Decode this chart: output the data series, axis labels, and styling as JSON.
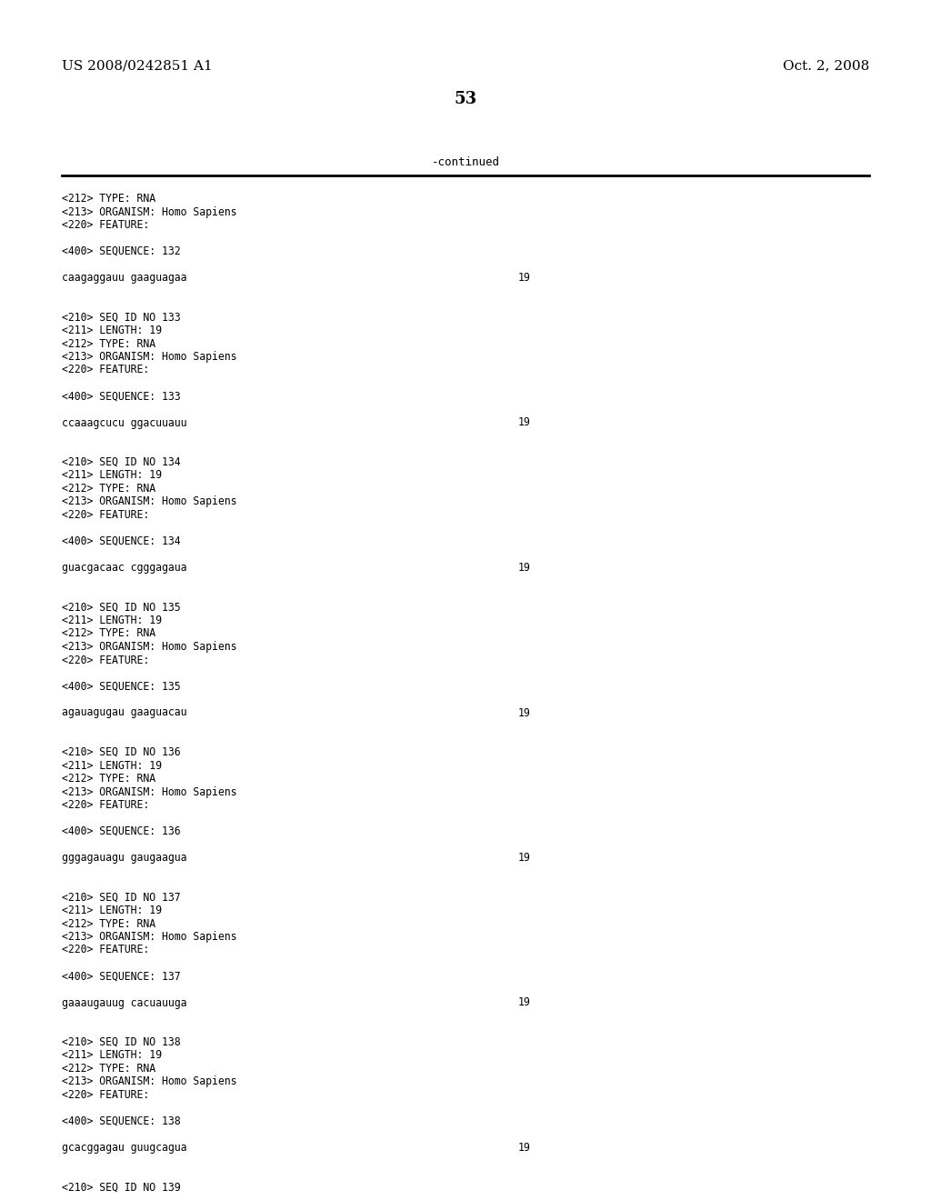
{
  "patent_number": "US 2008/0242851 A1",
  "date": "Oct. 2, 2008",
  "page_number": "53",
  "continued_label": "-continued",
  "background_color": "#ffffff",
  "text_color": "#000000",
  "content_lines": [
    [
      "<212> TYPE: RNA",
      null
    ],
    [
      "<213> ORGANISM: Homo Sapiens",
      null
    ],
    [
      "<220> FEATURE:",
      null
    ],
    [
      "",
      null
    ],
    [
      "<400> SEQUENCE: 132",
      null
    ],
    [
      "",
      null
    ],
    [
      "caagaggauu gaaguagaa",
      "19"
    ],
    [
      "",
      null
    ],
    [
      "",
      null
    ],
    [
      "<210> SEQ ID NO 133",
      null
    ],
    [
      "<211> LENGTH: 19",
      null
    ],
    [
      "<212> TYPE: RNA",
      null
    ],
    [
      "<213> ORGANISM: Homo Sapiens",
      null
    ],
    [
      "<220> FEATURE:",
      null
    ],
    [
      "",
      null
    ],
    [
      "<400> SEQUENCE: 133",
      null
    ],
    [
      "",
      null
    ],
    [
      "ccaaagcucu ggacuuauu",
      "19"
    ],
    [
      "",
      null
    ],
    [
      "",
      null
    ],
    [
      "<210> SEQ ID NO 134",
      null
    ],
    [
      "<211> LENGTH: 19",
      null
    ],
    [
      "<212> TYPE: RNA",
      null
    ],
    [
      "<213> ORGANISM: Homo Sapiens",
      null
    ],
    [
      "<220> FEATURE:",
      null
    ],
    [
      "",
      null
    ],
    [
      "<400> SEQUENCE: 134",
      null
    ],
    [
      "",
      null
    ],
    [
      "guacgacaac cgggagaua",
      "19"
    ],
    [
      "",
      null
    ],
    [
      "",
      null
    ],
    [
      "<210> SEQ ID NO 135",
      null
    ],
    [
      "<211> LENGTH: 19",
      null
    ],
    [
      "<212> TYPE: RNA",
      null
    ],
    [
      "<213> ORGANISM: Homo Sapiens",
      null
    ],
    [
      "<220> FEATURE:",
      null
    ],
    [
      "",
      null
    ],
    [
      "<400> SEQUENCE: 135",
      null
    ],
    [
      "",
      null
    ],
    [
      "agauagugau gaaguacau",
      "19"
    ],
    [
      "",
      null
    ],
    [
      "",
      null
    ],
    [
      "<210> SEQ ID NO 136",
      null
    ],
    [
      "<211> LENGTH: 19",
      null
    ],
    [
      "<212> TYPE: RNA",
      null
    ],
    [
      "<213> ORGANISM: Homo Sapiens",
      null
    ],
    [
      "<220> FEATURE:",
      null
    ],
    [
      "",
      null
    ],
    [
      "<400> SEQUENCE: 136",
      null
    ],
    [
      "",
      null
    ],
    [
      "gggagauagu gaugaagua",
      "19"
    ],
    [
      "",
      null
    ],
    [
      "",
      null
    ],
    [
      "<210> SEQ ID NO 137",
      null
    ],
    [
      "<211> LENGTH: 19",
      null
    ],
    [
      "<212> TYPE: RNA",
      null
    ],
    [
      "<213> ORGANISM: Homo Sapiens",
      null
    ],
    [
      "<220> FEATURE:",
      null
    ],
    [
      "",
      null
    ],
    [
      "<400> SEQUENCE: 137",
      null
    ],
    [
      "",
      null
    ],
    [
      "gaaaugauug cacuauuga",
      "19"
    ],
    [
      "",
      null
    ],
    [
      "",
      null
    ],
    [
      "<210> SEQ ID NO 138",
      null
    ],
    [
      "<211> LENGTH: 19",
      null
    ],
    [
      "<212> TYPE: RNA",
      null
    ],
    [
      "<213> ORGANISM: Homo Sapiens",
      null
    ],
    [
      "<220> FEATURE:",
      null
    ],
    [
      "",
      null
    ],
    [
      "<400> SEQUENCE: 138",
      null
    ],
    [
      "",
      null
    ],
    [
      "gcacggagau guugcagua",
      "19"
    ],
    [
      "",
      null
    ],
    [
      "",
      null
    ],
    [
      "<210> SEQ ID NO 139",
      null
    ]
  ]
}
